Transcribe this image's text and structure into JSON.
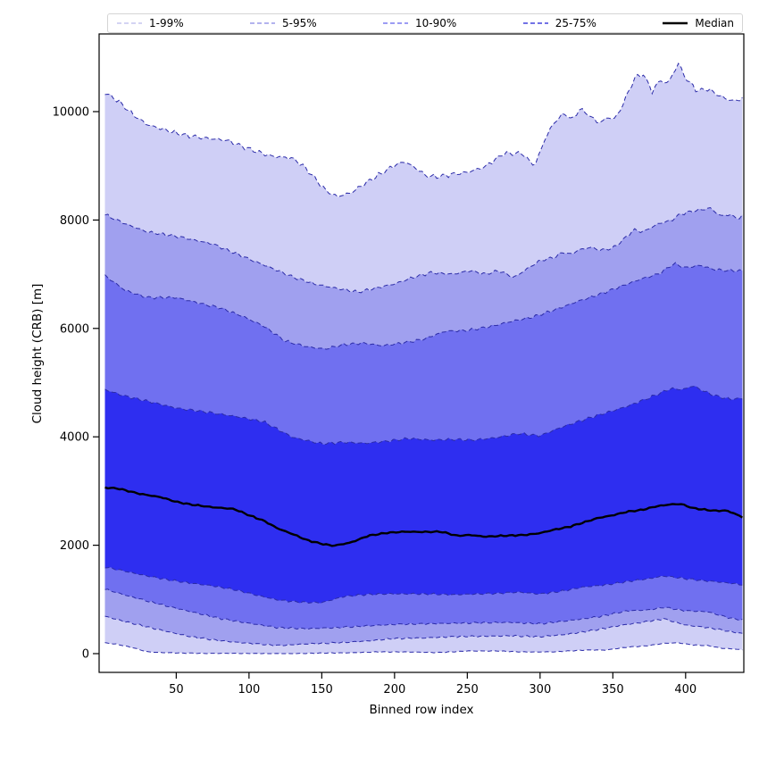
{
  "figure": {
    "background": "#ffffff"
  },
  "chart_data": {
    "type": "area",
    "subtype": "percentile-fan-chart",
    "title": "",
    "xlabel": "Binned row index",
    "ylabel": "Cloud height (CRB) [m]",
    "xlim": [
      -3,
      440
    ],
    "ylim": [
      -350,
      11430
    ],
    "xticks": [
      50,
      100,
      150,
      200,
      250,
      300,
      350,
      400
    ],
    "yticks": [
      0,
      2000,
      4000,
      6000,
      8000,
      10000
    ],
    "grid": false,
    "frame_color": "#000000",
    "band_edge_color": "#2b2ba8",
    "legend": {
      "position": "top",
      "entries": [
        {
          "label": "1-99%",
          "color": "#c6c6ef",
          "style": "dashed"
        },
        {
          "label": "5-95%",
          "color": "#9a9ae8",
          "style": "dashed"
        },
        {
          "label": "10-90%",
          "color": "#7c7cf0",
          "style": "dashed"
        },
        {
          "label": "25-75%",
          "color": "#4343dd",
          "style": "dashed"
        },
        {
          "label": "Median",
          "color": "#000000",
          "style": "solid"
        }
      ]
    },
    "bands": [
      {
        "name": "1-99%",
        "upper": "p99",
        "lower": "p1",
        "fill": "#cfcff6"
      },
      {
        "name": "5-95%",
        "upper": "p95",
        "lower": "p5",
        "fill": "#a0a0ef"
      },
      {
        "name": "10-90%",
        "upper": "p90",
        "lower": "p10",
        "fill": "#7070f0"
      },
      {
        "name": "25-75%",
        "upper": "p75",
        "lower": "p25",
        "fill": "#2e2ef0"
      }
    ],
    "median_style": {
      "color": "#000000",
      "width": 2.4
    },
    "series": {
      "p99": {
        "x": [
          1,
          10,
          20,
          30,
          40,
          55,
          70,
          85,
          100,
          115,
          130,
          138,
          145,
          152,
          160,
          170,
          180,
          190,
          200,
          207,
          215,
          222,
          230,
          240,
          250,
          262,
          275,
          288,
          296,
          305,
          312,
          318,
          322,
          327,
          333,
          340,
          347,
          352,
          358,
          365,
          371,
          377,
          382,
          388,
          395,
          400,
          408,
          415,
          422,
          430,
          436,
          440
        ],
        "y": [
          10350,
          10200,
          9950,
          9760,
          9680,
          9570,
          9510,
          9470,
          9310,
          9180,
          9140,
          8980,
          8780,
          8560,
          8430,
          8500,
          8680,
          8845,
          9010,
          9077,
          8950,
          8810,
          8800,
          8845,
          8880,
          8980,
          9225,
          9230,
          8990,
          9590,
          9880,
          9965,
          9830,
          10050,
          9950,
          9790,
          9890,
          9870,
          10200,
          10620,
          10690,
          10370,
          10575,
          10520,
          10890,
          10620,
          10380,
          10420,
          10310,
          10210,
          10200,
          10280
        ]
      },
      "p95": {
        "x": [
          1,
          15,
          30,
          50,
          75,
          100,
          115,
          130,
          145,
          160,
          175,
          190,
          200,
          212,
          225,
          240,
          252,
          262,
          272,
          282,
          292,
          300,
          310,
          316,
          321,
          326,
          335,
          341,
          350,
          356,
          365,
          370,
          376,
          382,
          390,
          396,
          403,
          410,
          417,
          424,
          430,
          436,
          440
        ],
        "y": [
          8100,
          7930,
          7780,
          7700,
          7560,
          7280,
          7120,
          6950,
          6820,
          6740,
          6670,
          6760,
          6820,
          6935,
          7030,
          7000,
          7067,
          7000,
          7067,
          6935,
          7116,
          7250,
          7314,
          7412,
          7363,
          7445,
          7495,
          7445,
          7478,
          7610,
          7824,
          7775,
          7857,
          7939,
          7989,
          8104,
          8153,
          8187,
          8220,
          8072,
          8104,
          8023,
          8090
        ]
      },
      "p90": {
        "x": [
          1,
          15,
          30,
          50,
          65,
          80,
          95,
          110,
          125,
          140,
          152,
          165,
          178,
          192,
          205,
          220,
          235,
          250,
          265,
          280,
          295,
          310,
          325,
          340,
          355,
          370,
          382,
          392,
          400,
          410,
          420,
          430,
          440
        ],
        "y": [
          6975,
          6700,
          6570,
          6570,
          6470,
          6380,
          6230,
          6045,
          5766,
          5660,
          5620,
          5700,
          5730,
          5680,
          5730,
          5800,
          5950,
          5963,
          6030,
          6127,
          6210,
          6342,
          6490,
          6622,
          6770,
          6918,
          7010,
          7198,
          7116,
          7166,
          7083,
          7067,
          7060
        ]
      },
      "p75": {
        "x": [
          1,
          15,
          30,
          50,
          70,
          90,
          110,
          130,
          150,
          165,
          180,
          195,
          210,
          225,
          240,
          255,
          270,
          285,
          300,
          315,
          330,
          345,
          360,
          375,
          390,
          398,
          405,
          412,
          420,
          430,
          440
        ],
        "y": [
          4870,
          4750,
          4660,
          4530,
          4460,
          4380,
          4280,
          3990,
          3871,
          3900,
          3880,
          3920,
          3970,
          3940,
          3953,
          3940,
          3986,
          4060,
          4020,
          4180,
          4316,
          4440,
          4563,
          4720,
          4892,
          4870,
          4942,
          4850,
          4760,
          4695,
          4710
        ]
      },
      "median": {
        "x": [
          1,
          10,
          25,
          40,
          50,
          60,
          75,
          90,
          100,
          110,
          120,
          130,
          140,
          150,
          158,
          170,
          182,
          195,
          207,
          220,
          232,
          243,
          252,
          262,
          275,
          290,
          300,
          310,
          320,
          330,
          340,
          350,
          360,
          370,
          380,
          390,
          397,
          405,
          412,
          420,
          428,
          434,
          440
        ],
        "y": [
          3063,
          3047,
          2948,
          2883,
          2800,
          2751,
          2701,
          2668,
          2553,
          2454,
          2306,
          2207,
          2092,
          2026,
          1990,
          2050,
          2175,
          2230,
          2250,
          2245,
          2250,
          2175,
          2190,
          2158,
          2175,
          2190,
          2224,
          2289,
          2339,
          2421,
          2504,
          2553,
          2619,
          2652,
          2718,
          2755,
          2760,
          2685,
          2660,
          2635,
          2640,
          2580,
          2504
        ]
      },
      "p25": {
        "x": [
          1,
          15,
          30,
          45,
          60,
          75,
          90,
          105,
          120,
          135,
          150,
          165,
          180,
          195,
          210,
          225,
          240,
          255,
          270,
          285,
          300,
          315,
          330,
          345,
          360,
          375,
          385,
          395,
          410,
          420,
          430,
          440
        ],
        "y": [
          1600,
          1520,
          1433,
          1360,
          1300,
          1250,
          1180,
          1080,
          989,
          950,
          940,
          1054,
          1090,
          1103,
          1103,
          1100,
          1087,
          1100,
          1110,
          1136,
          1100,
          1153,
          1230,
          1268,
          1330,
          1384,
          1433,
          1400,
          1351,
          1330,
          1301,
          1270
        ]
      },
      "p10": {
        "x": [
          1,
          15,
          30,
          45,
          60,
          80,
          100,
          120,
          140,
          160,
          180,
          200,
          220,
          240,
          260,
          280,
          300,
          320,
          340,
          360,
          375,
          385,
          400,
          415,
          430,
          440
        ],
        "y": [
          1190,
          1080,
          972,
          870,
          774,
          650,
          560,
          480,
          460,
          480,
          510,
          540,
          550,
          560,
          570,
          577,
          550,
          610,
          680,
          790,
          807,
          856,
          790,
          774,
          659,
          615
        ]
      },
      "p5": {
        "x": [
          1,
          15,
          30,
          45,
          60,
          80,
          100,
          120,
          140,
          160,
          180,
          200,
          220,
          240,
          260,
          280,
          300,
          320,
          340,
          355,
          370,
          385,
          400,
          415,
          430,
          440
        ],
        "y": [
          690,
          590,
          494,
          400,
          313,
          240,
          190,
          150,
          180,
          200,
          230,
          280,
          290,
          313,
          320,
          330,
          310,
          362,
          445,
          520,
          577,
          642,
          527,
          480,
          412,
          365
        ]
      },
      "p1": {
        "x": [
          1,
          10,
          20,
          30,
          40,
          55,
          70,
          90,
          110,
          130,
          150,
          170,
          190,
          210,
          230,
          250,
          270,
          290,
          310,
          330,
          345,
          360,
          375,
          385,
          395,
          405,
          415,
          425,
          435,
          440
        ],
        "y": [
          200,
          170,
          110,
          33,
          20,
          10,
          5,
          5,
          0,
          0,
          10,
          16,
          33,
          30,
          20,
          49,
          49,
          30,
          33,
          66,
          66,
          120,
          148,
          190,
          200,
          160,
          148,
          100,
          82,
          66
        ]
      }
    }
  }
}
